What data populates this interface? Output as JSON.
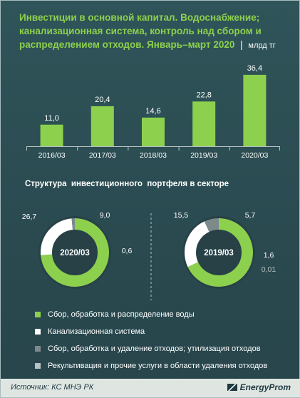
{
  "header": {
    "title": "Инвестиции в основной капитал. Водоснабжение; канализационная система, контроль над сбором и распределением отходов. Январь–март 2020",
    "unit": "млрд тг"
  },
  "colors": {
    "green": "#8cd04e",
    "white": "#ffffff",
    "gray": "#7d8a8c",
    "lightgray": "#b8c2c3"
  },
  "chart_data": [
    {
      "type": "bar",
      "categories": [
        "2016/03",
        "2017/03",
        "2018/03",
        "2019/03",
        "2020/03"
      ],
      "values": [
        11.0,
        20.4,
        14.6,
        22.8,
        36.4
      ],
      "value_labels": [
        "11,0",
        "20,4",
        "14,6",
        "22,8",
        "36,4"
      ],
      "color": "#8cd04e",
      "ylim": [
        0,
        40
      ]
    },
    {
      "type": "pie",
      "title": "Структура  инвестиционного  портфеля в секторе",
      "center_label": "2020/03",
      "values": [
        26.7,
        9.0,
        0.6,
        0.0
      ],
      "value_labels": [
        "26,7",
        "9,0",
        "0,6",
        ""
      ]
    },
    {
      "type": "pie",
      "center_label": "2019/03",
      "values": [
        15.5,
        5.7,
        1.6,
        0.01
      ],
      "value_labels": [
        "15,5",
        "5,7",
        "1,6",
        "0,01"
      ]
    }
  ],
  "legend": [
    {
      "label": "Сбор, обработка и распределение воды",
      "color": "#8cd04e"
    },
    {
      "label": "Канализационная система",
      "color": "#ffffff"
    },
    {
      "label": "Сбор, обработка и удаление отходов; утилизация отходов",
      "color": "#7d8a8c"
    },
    {
      "label": "Рекультивация и прочие услуги в области удаления отходов",
      "color": "#b8c2c3"
    }
  ],
  "footer": {
    "source": "Источник: КС МНЭ РК",
    "brand": "EnergyProm"
  }
}
